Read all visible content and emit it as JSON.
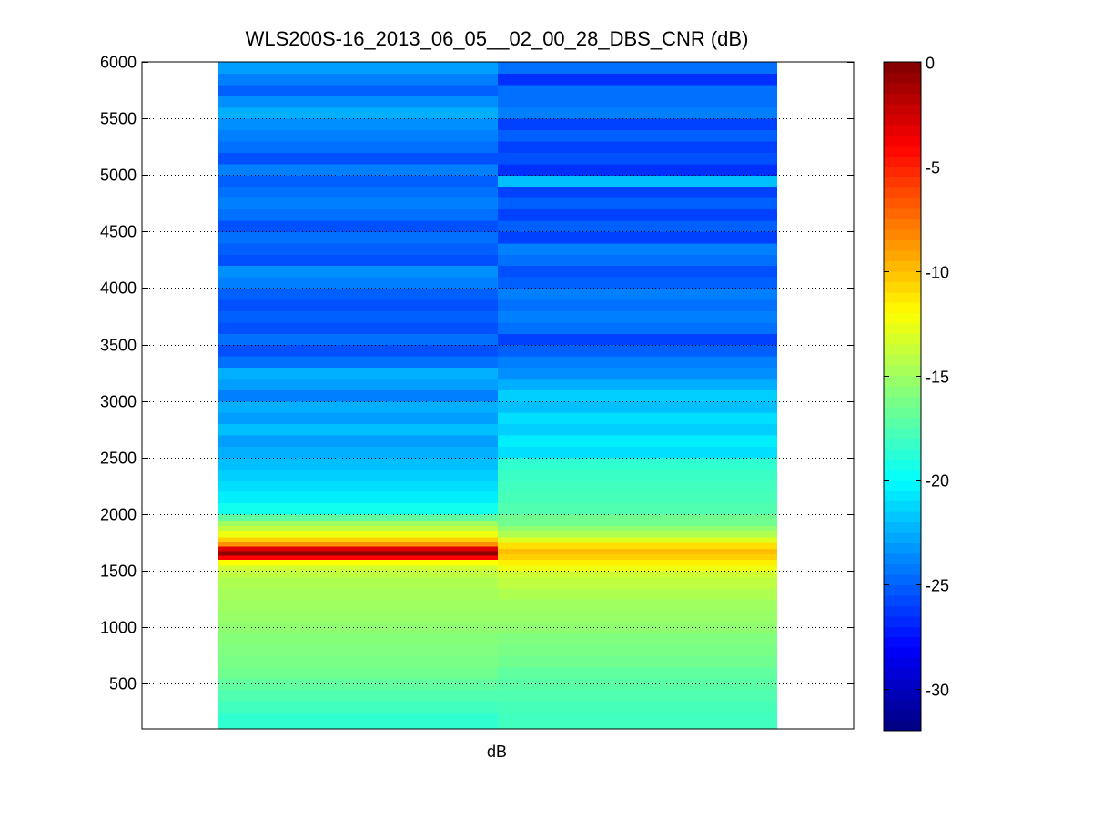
{
  "chart_data": {
    "type": "heatmap",
    "title": "WLS200S-16_2013_06_05__02_00_28_DBS_CNR (dB)",
    "xlabel": "dB",
    "ylabel": "",
    "ylim": [
      100,
      6000
    ],
    "yticks": [
      500,
      1000,
      1500,
      2000,
      2500,
      3000,
      3500,
      4000,
      4500,
      5000,
      5500,
      6000
    ],
    "grid": "horizontal dotted",
    "colormap": "jet",
    "clim": [
      -32,
      0
    ],
    "colorbar_ticks": [
      0,
      -5,
      -10,
      -15,
      -20,
      -25,
      -30
    ],
    "columns": [
      {
        "cells": [
          [
            100,
            250,
            -18.5
          ],
          [
            250,
            350,
            -18.0
          ],
          [
            350,
            450,
            -17.5
          ],
          [
            450,
            550,
            -17.0
          ],
          [
            550,
            650,
            -16.5
          ],
          [
            650,
            750,
            -16.2
          ],
          [
            750,
            850,
            -16.0
          ],
          [
            850,
            950,
            -15.8
          ],
          [
            950,
            1050,
            -15.5
          ],
          [
            1050,
            1150,
            -15.2
          ],
          [
            1150,
            1250,
            -15.0
          ],
          [
            1250,
            1350,
            -14.8
          ],
          [
            1350,
            1450,
            -14.5
          ],
          [
            1450,
            1500,
            -14.0
          ],
          [
            1500,
            1550,
            -13.5
          ],
          [
            1550,
            1600,
            -12.0
          ],
          [
            1600,
            1640,
            -4.0
          ],
          [
            1640,
            1680,
            -0.5
          ],
          [
            1680,
            1720,
            -3.0
          ],
          [
            1720,
            1760,
            -8.5
          ],
          [
            1760,
            1800,
            -10.5
          ],
          [
            1800,
            1850,
            -12.5
          ],
          [
            1850,
            1900,
            -14.0
          ],
          [
            1900,
            1950,
            -15.0
          ],
          [
            1950,
            2000,
            -17.0
          ],
          [
            2000,
            2100,
            -19.5
          ],
          [
            2100,
            2200,
            -20.5
          ],
          [
            2200,
            2300,
            -21.0
          ],
          [
            2300,
            2400,
            -21.5
          ],
          [
            2400,
            2500,
            -22.0
          ],
          [
            2500,
            2600,
            -22.5
          ],
          [
            2600,
            2700,
            -23.0
          ],
          [
            2700,
            2800,
            -22.0
          ],
          [
            2800,
            2900,
            -23.0
          ],
          [
            2900,
            3000,
            -22.5
          ],
          [
            3000,
            3100,
            -24.0
          ],
          [
            3100,
            3200,
            -23.0
          ],
          [
            3200,
            3300,
            -22.5
          ],
          [
            3300,
            3400,
            -24.5
          ],
          [
            3400,
            3500,
            -25.5
          ],
          [
            3500,
            3600,
            -24.5
          ],
          [
            3600,
            3700,
            -25.5
          ],
          [
            3700,
            3800,
            -25.0
          ],
          [
            3800,
            3900,
            -25.5
          ],
          [
            3900,
            4000,
            -25.0
          ],
          [
            4000,
            4100,
            -24.0
          ],
          [
            4100,
            4200,
            -23.5
          ],
          [
            4200,
            4300,
            -25.5
          ],
          [
            4300,
            4400,
            -25.0
          ],
          [
            4400,
            4500,
            -24.5
          ],
          [
            4500,
            4600,
            -25.5
          ],
          [
            4600,
            4700,
            -24.5
          ],
          [
            4700,
            4800,
            -24.0
          ],
          [
            4800,
            4900,
            -24.5
          ],
          [
            4900,
            5000,
            -25.0
          ],
          [
            5000,
            5100,
            -24.0
          ],
          [
            5100,
            5200,
            -25.5
          ],
          [
            5200,
            5300,
            -24.5
          ],
          [
            5300,
            5400,
            -24.0
          ],
          [
            5400,
            5500,
            -23.5
          ],
          [
            5500,
            5600,
            -22.5
          ],
          [
            5600,
            5700,
            -23.5
          ],
          [
            5700,
            5800,
            -25.0
          ],
          [
            5800,
            5900,
            -24.0
          ],
          [
            5900,
            6000,
            -23.0
          ]
        ]
      },
      {
        "cells": [
          [
            100,
            250,
            -18.0
          ],
          [
            250,
            350,
            -17.8
          ],
          [
            350,
            450,
            -17.5
          ],
          [
            450,
            550,
            -17.2
          ],
          [
            550,
            650,
            -17.0
          ],
          [
            650,
            750,
            -16.5
          ],
          [
            750,
            850,
            -16.2
          ],
          [
            850,
            950,
            -16.0
          ],
          [
            950,
            1050,
            -15.5
          ],
          [
            1050,
            1150,
            -15.2
          ],
          [
            1150,
            1250,
            -15.0
          ],
          [
            1250,
            1350,
            -14.5
          ],
          [
            1350,
            1450,
            -14.0
          ],
          [
            1450,
            1500,
            -13.5
          ],
          [
            1500,
            1550,
            -12.5
          ],
          [
            1550,
            1600,
            -11.5
          ],
          [
            1600,
            1650,
            -10.5
          ],
          [
            1650,
            1700,
            -10.0
          ],
          [
            1700,
            1750,
            -11.0
          ],
          [
            1750,
            1800,
            -13.0
          ],
          [
            1800,
            1850,
            -14.5
          ],
          [
            1850,
            1900,
            -15.5
          ],
          [
            1900,
            2000,
            -16.5
          ],
          [
            2000,
            2100,
            -17.5
          ],
          [
            2100,
            2200,
            -17.8
          ],
          [
            2200,
            2300,
            -18.0
          ],
          [
            2300,
            2400,
            -18.2
          ],
          [
            2400,
            2500,
            -18.5
          ],
          [
            2500,
            2600,
            -21.0
          ],
          [
            2600,
            2700,
            -20.5
          ],
          [
            2700,
            2800,
            -21.5
          ],
          [
            2800,
            2900,
            -21.0
          ],
          [
            2900,
            3000,
            -22.0
          ],
          [
            3000,
            3100,
            -21.5
          ],
          [
            3100,
            3200,
            -22.5
          ],
          [
            3200,
            3300,
            -23.5
          ],
          [
            3300,
            3400,
            -24.0
          ],
          [
            3400,
            3500,
            -25.0
          ],
          [
            3500,
            3600,
            -26.0
          ],
          [
            3600,
            3700,
            -24.5
          ],
          [
            3700,
            3800,
            -24.0
          ],
          [
            3800,
            3900,
            -24.5
          ],
          [
            3900,
            4000,
            -24.0
          ],
          [
            4000,
            4100,
            -25.0
          ],
          [
            4100,
            4200,
            -25.5
          ],
          [
            4200,
            4300,
            -24.5
          ],
          [
            4300,
            4400,
            -24.0
          ],
          [
            4400,
            4500,
            -26.0
          ],
          [
            4500,
            4600,
            -25.0
          ],
          [
            4600,
            4700,
            -26.0
          ],
          [
            4700,
            4800,
            -25.0
          ],
          [
            4800,
            4900,
            -26.0
          ],
          [
            4900,
            5000,
            -22.0
          ],
          [
            5000,
            5100,
            -26.5
          ],
          [
            5100,
            5200,
            -25.5
          ],
          [
            5200,
            5300,
            -26.0
          ],
          [
            5300,
            5400,
            -25.0
          ],
          [
            5400,
            5500,
            -26.0
          ],
          [
            5500,
            5600,
            -24.0
          ],
          [
            5600,
            5700,
            -24.5
          ],
          [
            5700,
            5800,
            -24.5
          ],
          [
            5800,
            5900,
            -26.5
          ],
          [
            5900,
            6000,
            -24.5
          ]
        ]
      }
    ]
  }
}
